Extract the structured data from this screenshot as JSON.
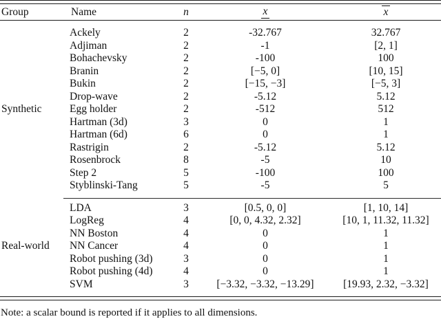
{
  "table": {
    "header": {
      "group": "Group",
      "name": "Name",
      "n": "n",
      "x_lower": "x",
      "x_upper": "x"
    },
    "groups": [
      {
        "label": "Synthetic",
        "rows": [
          {
            "name": "Ackely",
            "n": "2",
            "lower": "-32.767",
            "upper": "32.767"
          },
          {
            "name": "Adjiman",
            "n": "2",
            "lower": "-1",
            "upper": "[2, 1]"
          },
          {
            "name": "Bohachevsky",
            "n": "2",
            "lower": "-100",
            "upper": "100"
          },
          {
            "name": "Branin",
            "n": "2",
            "lower": "[−5, 0]",
            "upper": "[10, 15]"
          },
          {
            "name": "Bukin",
            "n": "2",
            "lower": "[−15, −3]",
            "upper": "[−5, 3]"
          },
          {
            "name": "Drop-wave",
            "n": "2",
            "lower": "-5.12",
            "upper": "5.12"
          },
          {
            "name": "Egg holder",
            "n": "2",
            "lower": "-512",
            "upper": "512"
          },
          {
            "name": "Hartman (3d)",
            "n": "3",
            "lower": "0",
            "upper": "1"
          },
          {
            "name": "Hartman (6d)",
            "n": "6",
            "lower": "0",
            "upper": "1"
          },
          {
            "name": "Rastrigin",
            "n": "2",
            "lower": "-5.12",
            "upper": "5.12"
          },
          {
            "name": "Rosenbrock",
            "n": "8",
            "lower": "-5",
            "upper": "10"
          },
          {
            "name": "Step 2",
            "n": "5",
            "lower": "-100",
            "upper": "100"
          },
          {
            "name": "Styblinski-Tang",
            "n": "5",
            "lower": "-5",
            "upper": "5"
          }
        ]
      },
      {
        "label": "Real-world",
        "rows": [
          {
            "name": "LDA",
            "n": "3",
            "lower": "[0.5, 0, 0]",
            "upper": "[1, 10, 14]"
          },
          {
            "name": "LogReg",
            "n": "4",
            "lower": "[0, 0, 4.32, 2.32]",
            "upper": "[10, 1, 11.32, 11.32]"
          },
          {
            "name": "NN Boston",
            "n": "4",
            "lower": "0",
            "upper": "1"
          },
          {
            "name": "NN Cancer",
            "n": "4",
            "lower": "0",
            "upper": "1"
          },
          {
            "name": "Robot pushing (3d)",
            "n": "3",
            "lower": "0",
            "upper": "1"
          },
          {
            "name": "Robot pushing (4d)",
            "n": "4",
            "lower": "0",
            "upper": "1"
          },
          {
            "name": "SVM",
            "n": "3",
            "lower": "[−3.32, −3.32, −13.29]",
            "upper": "[19.93, 2.32, −3.32]"
          }
        ]
      }
    ]
  },
  "footnote": "Note: a scalar bound is reported if it applies to all dimensions."
}
